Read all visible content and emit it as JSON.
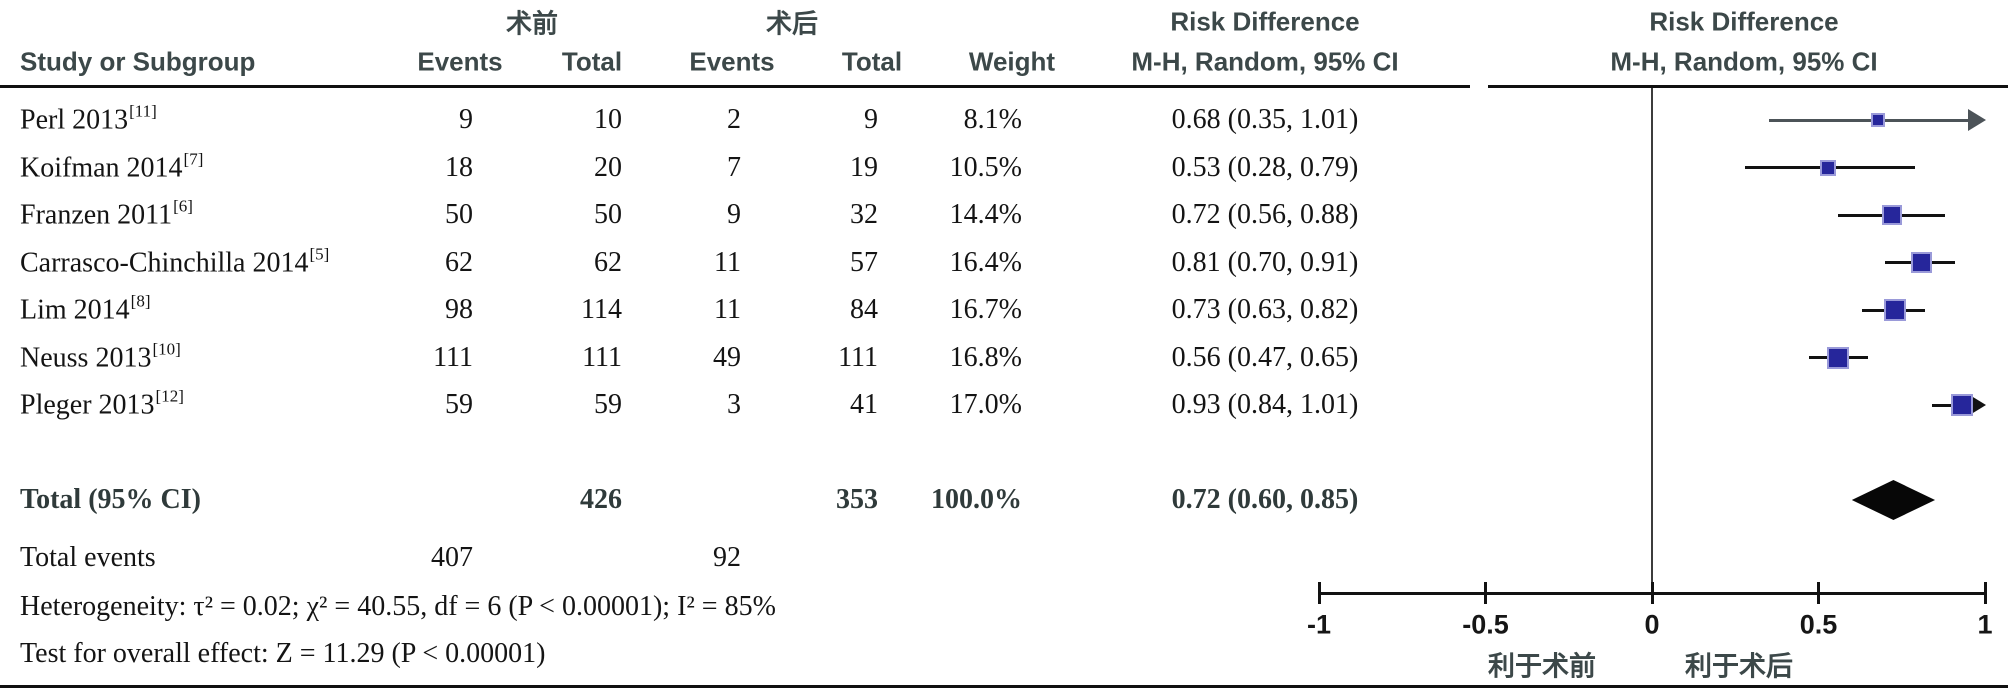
{
  "header": {
    "group_pre": "术前",
    "group_post": "术后",
    "study_col": "Study or Subgroup",
    "events_col": "Events",
    "total_col": "Total",
    "weight_col": "Weight",
    "rd_title": "Risk Difference",
    "rd_subtitle": "M-H, Random, 95% CI"
  },
  "chart_data": {
    "type": "forest",
    "effect_measure": "Risk Difference",
    "method": "M-H, Random, 95% CI",
    "marker_color": "#26269b",
    "marker_border_color": "#9a9ad9",
    "diamond_color": "#070707",
    "studies": [
      {
        "label": "Perl 2013",
        "ref": "[11]",
        "events_pre": 9,
        "total_pre": 10,
        "events_post": 2,
        "total_post": 9,
        "weight": "8.1%",
        "rd_text": "0.68 (0.35, 1.01)",
        "rd": 0.68,
        "ci_low": 0.35,
        "ci_high": 1.01,
        "arrow": true,
        "line_color": "#4c5358"
      },
      {
        "label": "Koifman 2014",
        "ref": "[7]",
        "events_pre": 18,
        "total_pre": 20,
        "events_post": 7,
        "total_post": 19,
        "weight": "10.5%",
        "rd_text": "0.53 (0.28, 0.79)",
        "rd": 0.53,
        "ci_low": 0.28,
        "ci_high": 0.79,
        "arrow": false,
        "line_color": "#121212"
      },
      {
        "label": "Franzen 2011",
        "ref": "[6]",
        "events_pre": 50,
        "total_pre": 50,
        "events_post": 9,
        "total_post": 32,
        "weight": "14.4%",
        "rd_text": "0.72 (0.56, 0.88)",
        "rd": 0.72,
        "ci_low": 0.56,
        "ci_high": 0.88,
        "arrow": false,
        "line_color": "#121212"
      },
      {
        "label": "Carrasco-Chinchilla 2014",
        "ref": "[5]",
        "events_pre": 62,
        "total_pre": 62,
        "events_post": 11,
        "total_post": 57,
        "weight": "16.4%",
        "rd_text": "0.81 (0.70, 0.91)",
        "rd": 0.81,
        "ci_low": 0.7,
        "ci_high": 0.91,
        "arrow": false,
        "line_color": "#121212"
      },
      {
        "label": "Lim 2014",
        "ref": "[8]",
        "events_pre": 98,
        "total_pre": 114,
        "events_post": 11,
        "total_post": 84,
        "weight": "16.7%",
        "rd_text": "0.73 (0.63, 0.82)",
        "rd": 0.73,
        "ci_low": 0.63,
        "ci_high": 0.82,
        "arrow": false,
        "line_color": "#121212"
      },
      {
        "label": "Neuss 2013",
        "ref": "[10]",
        "events_pre": 111,
        "total_pre": 111,
        "events_post": 49,
        "total_post": 111,
        "weight": "16.8%",
        "rd_text": "0.56 (0.47, 0.65)",
        "rd": 0.56,
        "ci_low": 0.47,
        "ci_high": 0.65,
        "arrow": false,
        "line_color": "#121212"
      },
      {
        "label": "Pleger 2013",
        "ref": "[12]",
        "events_pre": 59,
        "total_pre": 59,
        "events_post": 3,
        "total_post": 41,
        "weight": "17.0%",
        "rd_text": "0.93 (0.84, 1.01)",
        "rd": 0.93,
        "ci_low": 0.84,
        "ci_high": 1.01,
        "arrow": true,
        "line_color": "#121212"
      }
    ],
    "total": {
      "label": "Total (95% CI)",
      "total_pre": 426,
      "total_post": 353,
      "weight": "100.0%",
      "rd_text": "0.72 (0.60, 0.85)",
      "rd": 0.72,
      "ci_low": 0.6,
      "ci_high": 0.85
    },
    "total_events": {
      "label": "Total events",
      "events_pre": 407,
      "events_post": 92
    },
    "heterogeneity": "Heterogeneity: τ² = 0.02; χ² = 40.55, df = 6 (P < 0.00001); I² = 85%",
    "overall_effect": "Test for overall effect: Z = 11.29 (P < 0.00001)",
    "axis": {
      "xlim": [
        -1,
        1
      ],
      "ticks": [
        "-1",
        "-0.5",
        "0",
        "0.5",
        "1"
      ],
      "values": [
        -1,
        -0.5,
        0,
        0.5,
        1
      ],
      "favors_left": "利于术前",
      "favors_right": "利于术后"
    }
  }
}
